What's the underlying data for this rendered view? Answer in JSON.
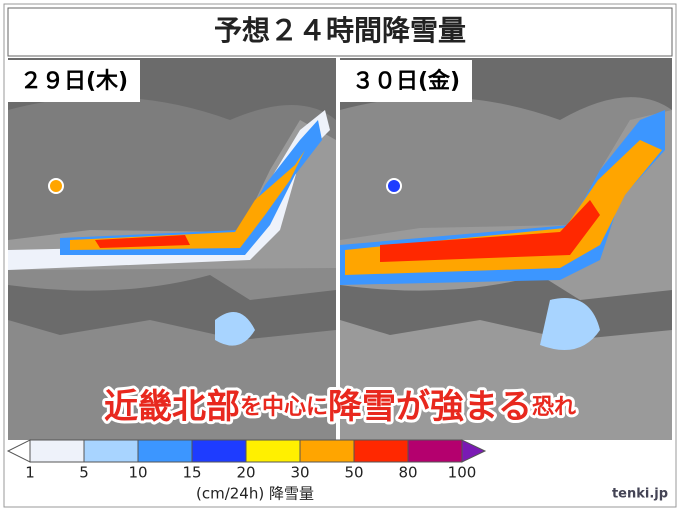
{
  "header": {
    "title": "予想２４時間降雪量"
  },
  "panels": [
    {
      "label": "２９日(木)"
    },
    {
      "label": "３０日(金)"
    }
  ],
  "headline": [
    "近畿北部",
    "を中心に",
    "降雪が強まる",
    "恐れ"
  ],
  "legend": {
    "values": [
      1,
      5,
      10,
      15,
      20,
      30,
      50,
      80,
      100
    ],
    "colors": [
      "#ffffff",
      "#eef2fa",
      "#a8d4ff",
      "#3c96ff",
      "#1e3cff",
      "#fff000",
      "#ffa500",
      "#ff2800",
      "#b4006e",
      "#7a1ab4"
    ],
    "unit": "(cm/24h) 降雪量"
  },
  "credit": "tenki.jp"
}
